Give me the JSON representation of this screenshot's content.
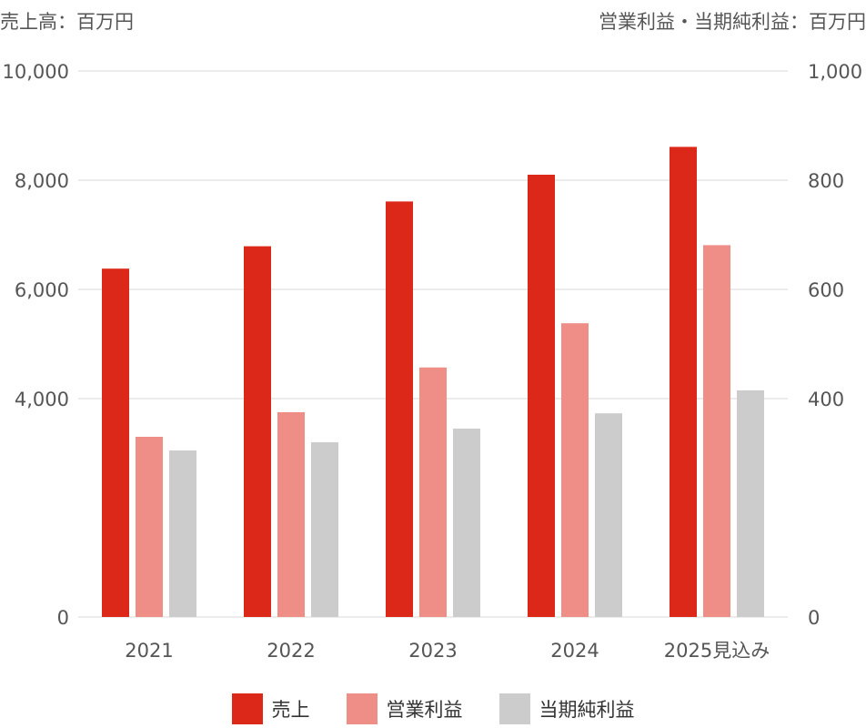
{
  "chart_data": {
    "type": "bar",
    "left_axis_label": "売上高：百万円",
    "right_axis_label": "営業利益・当期純利益：百万円",
    "categories": [
      "2021",
      "2022",
      "2023",
      "2024",
      "2025見込み"
    ],
    "left_axis": {
      "ylim": [
        0,
        10000
      ],
      "ticks": [
        "0",
        "4,000",
        "6,000",
        "8,000",
        "10,000"
      ],
      "tick_values": [
        0,
        4000,
        6000,
        8000,
        10000
      ]
    },
    "right_axis": {
      "ylim": [
        0,
        1000
      ],
      "ticks": [
        "0",
        "400",
        "600",
        "800",
        "1,000"
      ],
      "tick_values": [
        0,
        400,
        600,
        800,
        1000
      ]
    },
    "series": [
      {
        "name": "売上",
        "axis": "left",
        "color": "#dc2818",
        "values": [
          6380,
          6790,
          7610,
          8100,
          8610
        ]
      },
      {
        "name": "営業利益",
        "axis": "right",
        "color": "#ee8e86",
        "values": [
          330,
          375,
          457,
          538,
          681
        ]
      },
      {
        "name": "当期純利益",
        "axis": "right",
        "color": "#cccccc",
        "values": [
          305,
          320,
          345,
          373,
          415
        ]
      }
    ],
    "grid": true,
    "legend_position": "bottom"
  }
}
